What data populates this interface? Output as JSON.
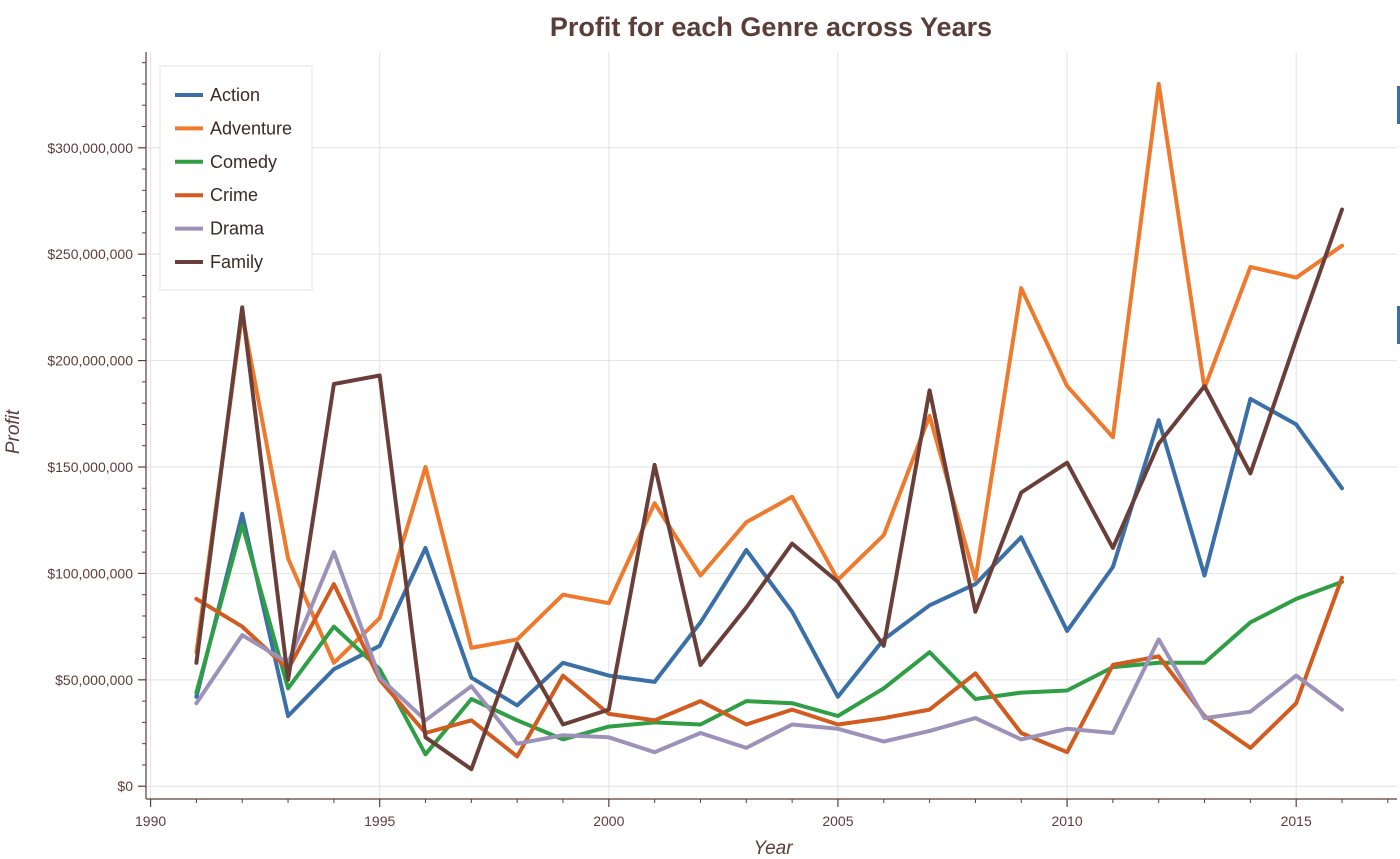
{
  "chart_data": {
    "type": "line",
    "title": "Profit for each Genre across Years",
    "xlabel": "Year",
    "ylabel": "Profit",
    "xlim": [
      1989.9,
      1992.0,
      2017.2
    ],
    "x_ticks": [
      1990,
      1995,
      2000,
      2005,
      2010,
      2015
    ],
    "x_tick_labels": [
      "1990",
      "1995",
      "2000",
      "2005",
      "2010",
      "2015"
    ],
    "ylim": [
      -6000000,
      345000000
    ],
    "y_ticks": [
      0,
      50000000,
      100000000,
      150000000,
      200000000,
      250000000,
      300000000
    ],
    "y_tick_labels": [
      "$0",
      "$50,000,000",
      "$100,000,000",
      "$150,000,000",
      "$200,000,000",
      "$250,000,000",
      "$300,000,000"
    ],
    "grid": true,
    "legend_position": "top-left",
    "x": [
      1991,
      1992,
      1993,
      1994,
      1995,
      1996,
      1997,
      1998,
      1999,
      2000,
      2001,
      2002,
      2003,
      2004,
      2005,
      2006,
      2007,
      2008,
      2009,
      2010,
      2011,
      2012,
      2013,
      2014,
      2015,
      2016
    ],
    "series": [
      {
        "name": "Action",
        "color": "#3a6fa8",
        "values": [
          42000000,
          128000000,
          33000000,
          55000000,
          66000000,
          112000000,
          51000000,
          38000000,
          58000000,
          52000000,
          49000000,
          77000000,
          111000000,
          82000000,
          42000000,
          69000000,
          85000000,
          95000000,
          117000000,
          73000000,
          103000000,
          172000000,
          99000000,
          182000000,
          170000000,
          140000000
        ]
      },
      {
        "name": "Adventure",
        "color": "#ef7a2d",
        "values": [
          63000000,
          222000000,
          107000000,
          58000000,
          79000000,
          150000000,
          65000000,
          69000000,
          90000000,
          86000000,
          133000000,
          99000000,
          124000000,
          136000000,
          97000000,
          118000000,
          174000000,
          97000000,
          234000000,
          188000000,
          164000000,
          330000000,
          187000000,
          244000000,
          239000000,
          254000000
        ]
      },
      {
        "name": "Comedy",
        "color": "#2f9e44",
        "values": [
          44000000,
          123000000,
          46000000,
          75000000,
          55000000,
          15000000,
          41000000,
          31000000,
          22000000,
          28000000,
          30000000,
          29000000,
          40000000,
          39000000,
          33000000,
          46000000,
          63000000,
          41000000,
          44000000,
          45000000,
          56000000,
          58000000,
          58000000,
          77000000,
          88000000,
          96000000
        ]
      },
      {
        "name": "Crime",
        "color": "#d25b20",
        "values": [
          88000000,
          75000000,
          55000000,
          95000000,
          50000000,
          25000000,
          31000000,
          14000000,
          52000000,
          34000000,
          31000000,
          40000000,
          29000000,
          36000000,
          29000000,
          32000000,
          36000000,
          53000000,
          25000000,
          16000000,
          57000000,
          61000000,
          33000000,
          18000000,
          39000000,
          98000000
        ]
      },
      {
        "name": "Drama",
        "color": "#9c91b8",
        "values": [
          39000000,
          71000000,
          58000000,
          110000000,
          51000000,
          31000000,
          47000000,
          20000000,
          24000000,
          23000000,
          16000000,
          25000000,
          18000000,
          29000000,
          27000000,
          21000000,
          26000000,
          32000000,
          22000000,
          27000000,
          25000000,
          69000000,
          32000000,
          35000000,
          52000000,
          36000000
        ]
      },
      {
        "name": "Family",
        "color": "#6a3f3a",
        "values": [
          58000000,
          225000000,
          50000000,
          189000000,
          193000000,
          23000000,
          8000000,
          67000000,
          29000000,
          36000000,
          151000000,
          57000000,
          84000000,
          114000000,
          96000000,
          66000000,
          186000000,
          82000000,
          138000000,
          152000000,
          112000000,
          161000000,
          188000000,
          147000000,
          210000000,
          271000000
        ]
      }
    ]
  }
}
